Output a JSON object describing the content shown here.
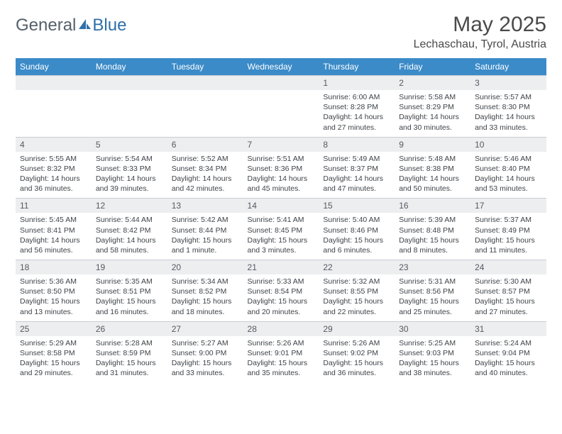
{
  "logo": {
    "text1": "General",
    "text2": "Blue"
  },
  "title": "May 2025",
  "location": "Lechaschau, Tyrol, Austria",
  "colors": {
    "header_bg": "#3b8bc8",
    "header_text": "#ffffff",
    "daynum_bg": "#eceef0",
    "cell_border": "#c8cdd2",
    "body_text": "#3e4348",
    "title_text": "#4a4a4a",
    "logo_gray": "#55606a",
    "logo_blue": "#2f6fa8"
  },
  "weekdays": [
    "Sunday",
    "Monday",
    "Tuesday",
    "Wednesday",
    "Thursday",
    "Friday",
    "Saturday"
  ],
  "weeks": [
    [
      null,
      null,
      null,
      null,
      {
        "n": "1",
        "sunrise": "6:00 AM",
        "sunset": "8:28 PM",
        "daylight": "14 hours and 27 minutes."
      },
      {
        "n": "2",
        "sunrise": "5:58 AM",
        "sunset": "8:29 PM",
        "daylight": "14 hours and 30 minutes."
      },
      {
        "n": "3",
        "sunrise": "5:57 AM",
        "sunset": "8:30 PM",
        "daylight": "14 hours and 33 minutes."
      }
    ],
    [
      {
        "n": "4",
        "sunrise": "5:55 AM",
        "sunset": "8:32 PM",
        "daylight": "14 hours and 36 minutes."
      },
      {
        "n": "5",
        "sunrise": "5:54 AM",
        "sunset": "8:33 PM",
        "daylight": "14 hours and 39 minutes."
      },
      {
        "n": "6",
        "sunrise": "5:52 AM",
        "sunset": "8:34 PM",
        "daylight": "14 hours and 42 minutes."
      },
      {
        "n": "7",
        "sunrise": "5:51 AM",
        "sunset": "8:36 PM",
        "daylight": "14 hours and 45 minutes."
      },
      {
        "n": "8",
        "sunrise": "5:49 AM",
        "sunset": "8:37 PM",
        "daylight": "14 hours and 47 minutes."
      },
      {
        "n": "9",
        "sunrise": "5:48 AM",
        "sunset": "8:38 PM",
        "daylight": "14 hours and 50 minutes."
      },
      {
        "n": "10",
        "sunrise": "5:46 AM",
        "sunset": "8:40 PM",
        "daylight": "14 hours and 53 minutes."
      }
    ],
    [
      {
        "n": "11",
        "sunrise": "5:45 AM",
        "sunset": "8:41 PM",
        "daylight": "14 hours and 56 minutes."
      },
      {
        "n": "12",
        "sunrise": "5:44 AM",
        "sunset": "8:42 PM",
        "daylight": "14 hours and 58 minutes."
      },
      {
        "n": "13",
        "sunrise": "5:42 AM",
        "sunset": "8:44 PM",
        "daylight": "15 hours and 1 minute."
      },
      {
        "n": "14",
        "sunrise": "5:41 AM",
        "sunset": "8:45 PM",
        "daylight": "15 hours and 3 minutes."
      },
      {
        "n": "15",
        "sunrise": "5:40 AM",
        "sunset": "8:46 PM",
        "daylight": "15 hours and 6 minutes."
      },
      {
        "n": "16",
        "sunrise": "5:39 AM",
        "sunset": "8:48 PM",
        "daylight": "15 hours and 8 minutes."
      },
      {
        "n": "17",
        "sunrise": "5:37 AM",
        "sunset": "8:49 PM",
        "daylight": "15 hours and 11 minutes."
      }
    ],
    [
      {
        "n": "18",
        "sunrise": "5:36 AM",
        "sunset": "8:50 PM",
        "daylight": "15 hours and 13 minutes."
      },
      {
        "n": "19",
        "sunrise": "5:35 AM",
        "sunset": "8:51 PM",
        "daylight": "15 hours and 16 minutes."
      },
      {
        "n": "20",
        "sunrise": "5:34 AM",
        "sunset": "8:52 PM",
        "daylight": "15 hours and 18 minutes."
      },
      {
        "n": "21",
        "sunrise": "5:33 AM",
        "sunset": "8:54 PM",
        "daylight": "15 hours and 20 minutes."
      },
      {
        "n": "22",
        "sunrise": "5:32 AM",
        "sunset": "8:55 PM",
        "daylight": "15 hours and 22 minutes."
      },
      {
        "n": "23",
        "sunrise": "5:31 AM",
        "sunset": "8:56 PM",
        "daylight": "15 hours and 25 minutes."
      },
      {
        "n": "24",
        "sunrise": "5:30 AM",
        "sunset": "8:57 PM",
        "daylight": "15 hours and 27 minutes."
      }
    ],
    [
      {
        "n": "25",
        "sunrise": "5:29 AM",
        "sunset": "8:58 PM",
        "daylight": "15 hours and 29 minutes."
      },
      {
        "n": "26",
        "sunrise": "5:28 AM",
        "sunset": "8:59 PM",
        "daylight": "15 hours and 31 minutes."
      },
      {
        "n": "27",
        "sunrise": "5:27 AM",
        "sunset": "9:00 PM",
        "daylight": "15 hours and 33 minutes."
      },
      {
        "n": "28",
        "sunrise": "5:26 AM",
        "sunset": "9:01 PM",
        "daylight": "15 hours and 35 minutes."
      },
      {
        "n": "29",
        "sunrise": "5:26 AM",
        "sunset": "9:02 PM",
        "daylight": "15 hours and 36 minutes."
      },
      {
        "n": "30",
        "sunrise": "5:25 AM",
        "sunset": "9:03 PM",
        "daylight": "15 hours and 38 minutes."
      },
      {
        "n": "31",
        "sunrise": "5:24 AM",
        "sunset": "9:04 PM",
        "daylight": "15 hours and 40 minutes."
      }
    ]
  ],
  "labels": {
    "sunrise": "Sunrise:",
    "sunset": "Sunset:",
    "daylight": "Daylight:"
  }
}
